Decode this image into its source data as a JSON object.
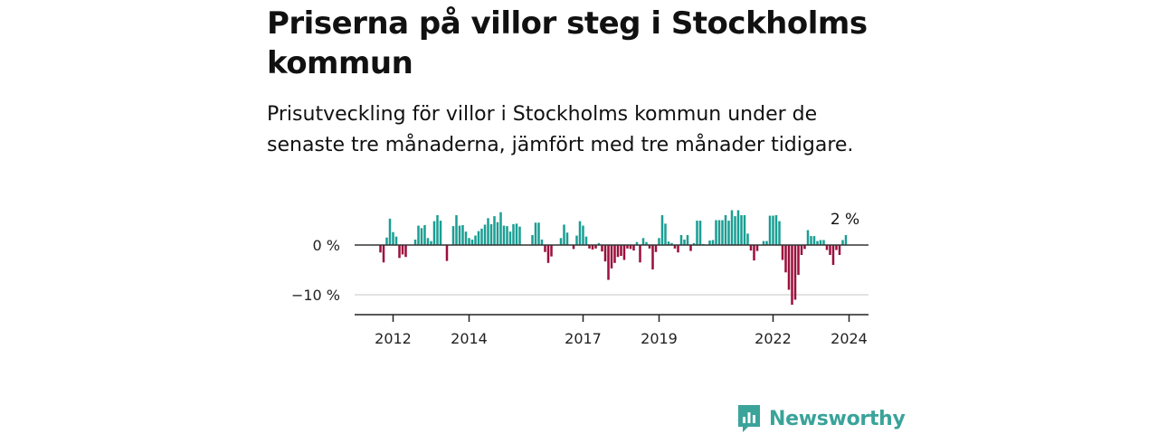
{
  "title": "Priserna på villor steg i Stockholms kommun",
  "subtitle": "Prisutveckling för villor i Stockholms kommun under de senaste tre månaderna, jämfört med tre månader tidigare.",
  "logo": {
    "text": "Newsworthy",
    "icon": "newsworthy-logo-icon",
    "color": "#3aa39a"
  },
  "colors": {
    "positive": "#1a9e93",
    "negative": "#9b0f3c",
    "zero_line": "#333333",
    "grid": "#d9d9d9"
  },
  "chart_data": {
    "type": "bar",
    "x_start": "2011-09",
    "x_end": "2024-04",
    "x_ticks": [
      "2012",
      "2014",
      "2017",
      "2019",
      "2022",
      "2024"
    ],
    "y_ticks": [
      {
        "value": 0,
        "label": "0 %"
      },
      {
        "value": -10,
        "label": "−10 %"
      }
    ],
    "ylim": [
      -14,
      7
    ],
    "grid": true,
    "last_label": "2 %",
    "values": [
      -1.5,
      -3.5,
      1.5,
      5.3,
      2.6,
      1.7,
      -2.6,
      -1.9,
      -2.4,
      0,
      0,
      1.1,
      3.9,
      3.4,
      4.0,
      1.4,
      0.8,
      4.8,
      6.0,
      4.9,
      0,
      -3.2,
      0,
      3.8,
      6.0,
      3.9,
      4.0,
      2.7,
      1.4,
      1.1,
      1.9,
      2.8,
      3.3,
      4.1,
      5.4,
      4.2,
      5.8,
      4.6,
      6.6,
      3.9,
      3.8,
      2.7,
      4.2,
      4.3,
      3.7,
      0,
      0,
      0,
      2.0,
      4.5,
      4.5,
      1.1,
      -1.4,
      -3.6,
      -2.3,
      0,
      0,
      1.4,
      4.1,
      2.5,
      0,
      -0.8,
      1.9,
      4.8,
      3.9,
      1.7,
      -0.7,
      -0.9,
      -0.7,
      0.4,
      -1.3,
      -3.3,
      -7.0,
      -4.7,
      -3.6,
      -2.4,
      -2.2,
      -3.0,
      -0.7,
      -0.8,
      -1.1,
      0.6,
      -3.5,
      1.4,
      0.6,
      -0.7,
      -4.9,
      -1.4,
      1.4,
      6.0,
      4.3,
      0.7,
      0.4,
      -0.7,
      -1.5,
      2.0,
      1.1,
      2.0,
      -1.2,
      0.4,
      4.9,
      4.9,
      0.2,
      0,
      0.9,
      1.0,
      5.0,
      5.0,
      5.0,
      6.0,
      4.9,
      7.0,
      5.8,
      7.0,
      6.0,
      6.0,
      2.3,
      -1.1,
      -3.1,
      -1.2,
      0,
      0.8,
      0.8,
      5.9,
      5.9,
      6.0,
      4.8,
      -3.0,
      -5.5,
      -9.0,
      -12.0,
      -11.0,
      -6.0,
      -2.0,
      -0.8,
      3.0,
      1.8,
      1.8,
      0.8,
      1.0,
      1.0,
      -1.0,
      -2.0,
      -4.0,
      -1.0,
      -2.0,
      1.0,
      2.0
    ]
  }
}
